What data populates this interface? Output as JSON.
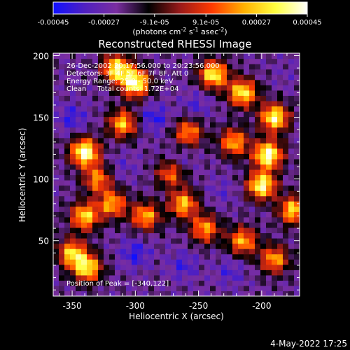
{
  "colorbar": {
    "tick_labels": [
      "-0.00045",
      "-0.00027",
      "-9.1e-05",
      "9.1e-05",
      "0.00027",
      "0.00045"
    ],
    "tick_values": [
      -0.00045,
      -0.00027,
      -9.1e-05,
      9.1e-05,
      0.00027,
      0.00045
    ],
    "range": [
      -0.00045,
      0.00045
    ],
    "units_prefix": "(photons cm",
    "units_exp1": "-2",
    "units_mid": " s",
    "units_exp2": "-1",
    "units_mid2": " asec",
    "units_exp3": "-2",
    "units_suffix": ")",
    "colors": [
      "#1010ff",
      "#5020c0",
      "#7a2ea0",
      "#000000",
      "#9a1a1a",
      "#ff3a00",
      "#ffb000",
      "#ffff40",
      "#ffffff"
    ]
  },
  "chart_data": {
    "type": "heatmap",
    "title": "Reconstructed RHESSI Image",
    "xlabel": "Heliocentric X (arcsec)",
    "ylabel": "Heliocentric Y (arcsec)",
    "xlim": [
      -365,
      -170
    ],
    "ylim": [
      5,
      202
    ],
    "xticks": [
      -350,
      -300,
      -250,
      -200
    ],
    "yticks": [
      50,
      100,
      150,
      200
    ],
    "xtick_labels": [
      "-350",
      "-300",
      "-250",
      "-200"
    ],
    "ytick_labels": [
      "50",
      "100",
      "150",
      "200"
    ],
    "grid": false,
    "grid_cols": 44,
    "grid_rows": 46,
    "peak_position": [
      -340,
      122
    ],
    "bright_regions": [
      {
        "x": -340,
        "y": 122,
        "value": 0.00045
      },
      {
        "x": -300,
        "y": 178,
        "value": 0.00042
      },
      {
        "x": -315,
        "y": 190,
        "value": 0.00035
      },
      {
        "x": -238,
        "y": 185,
        "value": 0.00036
      },
      {
        "x": -215,
        "y": 170,
        "value": 0.00034
      },
      {
        "x": -190,
        "y": 150,
        "value": 0.00038
      },
      {
        "x": -195,
        "y": 120,
        "value": 0.00044
      },
      {
        "x": -200,
        "y": 95,
        "value": 0.0004
      },
      {
        "x": -175,
        "y": 75,
        "value": 0.0003
      },
      {
        "x": -222,
        "y": 130,
        "value": 0.00024
      },
      {
        "x": -258,
        "y": 138,
        "value": 0.0002
      },
      {
        "x": -310,
        "y": 145,
        "value": 0.00026
      },
      {
        "x": -330,
        "y": 100,
        "value": 0.00018
      },
      {
        "x": -318,
        "y": 80,
        "value": 0.00023
      },
      {
        "x": -340,
        "y": 70,
        "value": 0.0003
      },
      {
        "x": -350,
        "y": 40,
        "value": 0.00028
      },
      {
        "x": -338,
        "y": 28,
        "value": 0.00032
      },
      {
        "x": -292,
        "y": 70,
        "value": 0.00024
      },
      {
        "x": -262,
        "y": 80,
        "value": 0.00026
      },
      {
        "x": -245,
        "y": 60,
        "value": 0.00022
      },
      {
        "x": -215,
        "y": 50,
        "value": 0.00024
      },
      {
        "x": -190,
        "y": 35,
        "value": 0.00022
      },
      {
        "x": -272,
        "y": 105,
        "value": 0.00016
      }
    ],
    "dark_regions": [
      {
        "x": -350,
        "y": 150,
        "value": -0.00038
      },
      {
        "x": -285,
        "y": 150,
        "value": -0.0004
      },
      {
        "x": -252,
        "y": 160,
        "value": -0.00034
      },
      {
        "x": -265,
        "y": 115,
        "value": -0.00032
      },
      {
        "x": -300,
        "y": 40,
        "value": -0.0004
      },
      {
        "x": -262,
        "y": 30,
        "value": -0.00036
      },
      {
        "x": -232,
        "y": 90,
        "value": -0.0003
      },
      {
        "x": -310,
        "y": 110,
        "value": -0.0003
      },
      {
        "x": -225,
        "y": 25,
        "value": -0.00034
      },
      {
        "x": -180,
        "y": 185,
        "value": -0.00026
      }
    ]
  },
  "info": {
    "line1": "26-Dec-2002 20:17:56.000 to 20:23:56.000",
    "line2": "Detectors: 3F 4F 5F 6F 7F 8F, Att 0",
    "line3": "Energy Range: 25.0 - 50.0 keV",
    "line4": "Clean     Total counts: 1.72E+04",
    "peak": "Position of Peak = [-340,122]"
  },
  "footer": {
    "timestamp": "4-May-2022 17:25"
  }
}
